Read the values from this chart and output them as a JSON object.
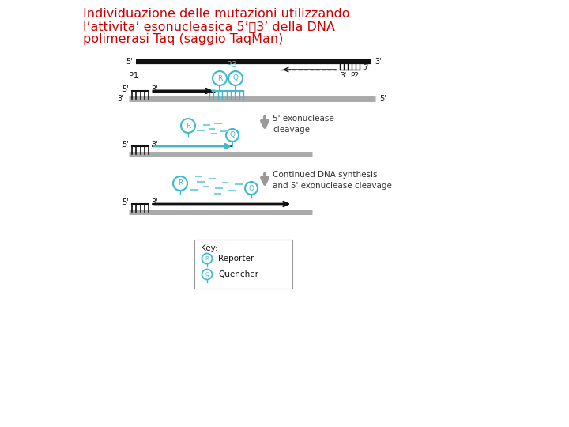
{
  "title_line1": "Individuazione delle mutazioni utilizzando",
  "title_line2": "l’attivita’ esonucleasica 5’✅3’ della DNA",
  "title_line3": "polimerasi Taq (saggio TaqMan)",
  "title_color": "#cc0000",
  "bg_color": "#ffffff",
  "cyan_color": "#40b8d0",
  "light_cyan": "#7fcfe0",
  "gray_strand": "#aaaaaa",
  "dark_color": "#111111",
  "arrow_gray": "#999999",
  "text_color": "#333333"
}
